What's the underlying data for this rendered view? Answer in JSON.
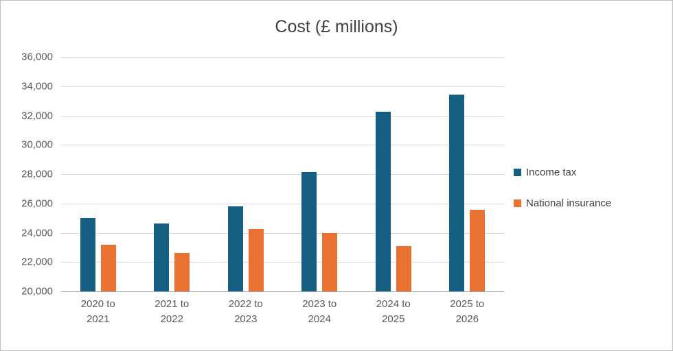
{
  "figure": {
    "background": "#ffffff",
    "border_color": "#bfbfbf"
  },
  "chart_data": {
    "type": "bar",
    "title": "Cost (£ millions)",
    "categories": [
      "2020 to 2021",
      "2021 to 2022",
      "2022 to 2023",
      "2023 to 2024",
      "2024 to 2025",
      "2025 to 2026"
    ],
    "series": [
      {
        "name": "Income tax",
        "color": "#156082",
        "values": [
          25000,
          24650,
          25800,
          28150,
          32250,
          33450
        ]
      },
      {
        "name": "National insurance",
        "color": "#E97132",
        "values": [
          23200,
          22600,
          24250,
          24000,
          23100,
          25550
        ]
      }
    ],
    "ylim": [
      20000,
      36000
    ],
    "ytick_step": 2000,
    "ytick_labels": [
      "36,000",
      "34,000",
      "32,000",
      "30,000",
      "28,000",
      "26,000",
      "24,000",
      "22,000",
      "20,000"
    ],
    "xlabel": "",
    "ylabel": "",
    "grid": true,
    "legend_position": "right",
    "gridline_color": "#d9d9d9",
    "axis_line_color": "#a6a6a6",
    "tick_label_color": "#595959",
    "title_color": "#404040"
  }
}
